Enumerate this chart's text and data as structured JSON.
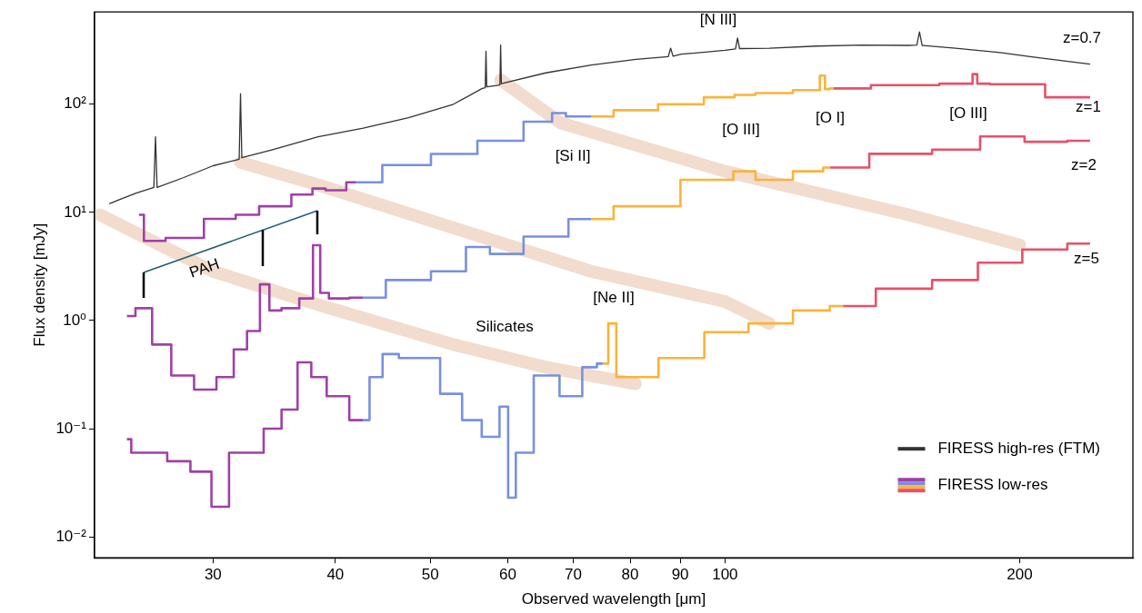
{
  "chart_data": {
    "type": "line",
    "xlabel": "Observed wavelength [μm]",
    "ylabel": "Flux density [mJy]",
    "xlim": [
      22.7,
      261
    ],
    "ylim": [
      0.0064,
      713
    ],
    "xticks": [
      30,
      40,
      50,
      60,
      70,
      80,
      90,
      100,
      200
    ],
    "yticks": [
      {
        "value": 0.01,
        "label": "10⁻²"
      },
      {
        "value": 0.1,
        "label": "10⁻¹"
      },
      {
        "value": 1,
        "label": "10⁰"
      },
      {
        "value": 10,
        "label": "10¹"
      },
      {
        "value": 100,
        "label": "10²"
      }
    ],
    "log": "xy",
    "grid": false,
    "legend": "bottom right",
    "marker": "none",
    "line_style": "solid",
    "series": [
      {
        "color": "#f2dccd",
        "x": [
          59,
          68,
          81,
          100,
          154,
          200
        ],
        "values": [
          168,
          67,
          42,
          24,
          9.5,
          5
        ]
      },
      {
        "color": "#f2dccd",
        "x": [
          32,
          38.4,
          52.8,
          73,
          100,
          111
        ],
        "values": [
          29,
          18,
          7.2,
          2.85,
          1.5,
          0.94
        ]
      },
      {
        "color": "#f2dccd",
        "x": [
          23,
          25,
          30,
          38.4,
          52.8,
          65.6,
          81
        ],
        "values": [
          9.5,
          6.5,
          2.85,
          1.4,
          0.6,
          0.37,
          0.26
        ]
      },
      {
        "name": "FIRESS high-res (FTM)",
        "color": "#333333",
        "x": [
          23.5,
          24,
          25,
          26.1,
          26.2,
          26.3,
          28,
          30,
          31.9,
          32,
          32.1,
          34.5,
          38.4,
          42.7,
          47.5,
          52.8,
          56.5,
          56.9,
          57,
          57.1,
          58.7,
          58.9,
          59,
          59.1,
          65.6,
          73,
          81.1,
          87.5,
          88,
          88.5,
          90.2,
          100,
          102.5,
          103,
          103.5,
          111,
          124,
          138,
          154,
          157,
          158,
          159,
          172,
          191,
          205,
          212,
          236
        ],
        "values": [
          12,
          13,
          15,
          17,
          50,
          17,
          21,
          27,
          31,
          125,
          32,
          38,
          50,
          60,
          75,
          100,
          140,
          142,
          310,
          145,
          150,
          152,
          353,
          155,
          195,
          230,
          260,
          275,
          330,
          278,
          290,
          315,
          325,
          410,
          327,
          330,
          345,
          353,
          350,
          352,
          466,
          350,
          330,
          300,
          275,
          265,
          235
        ]
      },
      {
        "name": "FIRESS low-res",
        "type": "step",
        "color": "#a040a8",
        "x": [
          25.2,
          25.8,
          27.9,
          30.9,
          32.4,
          34.5,
          37.7,
          38.1,
          40.1,
          42
        ],
        "values": [
          9.5,
          5.45,
          5.8,
          8.7,
          9.5,
          11.4,
          14.6,
          16.6,
          16,
          19
        ]
      },
      {
        "type": "step",
        "color": "#7890e0",
        "x": [
          42,
          47.5,
          52.8,
          59.1,
          65.6,
          67.6,
          70,
          73
        ],
        "values": [
          19,
          27.4,
          34.7,
          46,
          69,
          83,
          77,
          77
        ]
      },
      {
        "type": "step",
        "color": "#fbb33a",
        "x": [
          73,
          81.1,
          90,
          100.6,
          104,
          111,
          124,
          126,
          127,
          129
        ],
        "values": [
          77,
          88,
          100,
          116,
          122,
          127,
          135,
          184,
          138,
          140
        ]
      },
      {
        "type": "step",
        "color": "#e8506a",
        "x": [
          129,
          154,
          178,
          180,
          182,
          191,
          236
        ],
        "values": [
          140,
          150,
          155,
          190,
          155,
          153,
          116
        ]
      },
      {
        "type": "step",
        "color": "#a040a8",
        "x": [
          24.5,
          25.5,
          26.5,
          27.9,
          29.5,
          31,
          32,
          33,
          34,
          34.5,
          36,
          37.5,
          38.4,
          38.8,
          40,
          42.7
        ],
        "values": [
          1.1,
          1.3,
          0.6,
          0.31,
          0.23,
          0.3,
          0.54,
          0.8,
          2.16,
          1.24,
          1.3,
          1.6,
          4.97,
          1.8,
          1.6,
          1.63
        ]
      },
      {
        "type": "step",
        "color": "#7890e0",
        "x": [
          42.7,
          47.5,
          52.8,
          56,
          59.1,
          65.6,
          73
        ],
        "values": [
          1.63,
          2.37,
          2.85,
          4.79,
          4.13,
          5.98,
          8.67
        ]
      },
      {
        "type": "step",
        "color": "#fbb33a",
        "x": [
          73,
          81.1,
          100,
          104,
          111,
          124,
          128
        ],
        "values": [
          8.67,
          11.4,
          20,
          24,
          20,
          24,
          26
        ]
      },
      {
        "type": "step",
        "color": "#e8506a",
        "x": [
          128,
          154,
          172,
          193,
          212,
          236
        ],
        "values": [
          26,
          34.8,
          38.1,
          50.4,
          45,
          45.9
        ]
      },
      {
        "type": "step",
        "color": "#a040a8",
        "x": [
          24.5,
          25,
          26,
          27.9,
          29,
          30.8,
          31.5,
          33.1,
          34.5,
          36,
          37.2,
          38.4,
          40,
          42.7
        ],
        "values": [
          0.08,
          0.06,
          0.06,
          0.05,
          0.04,
          0.019,
          0.06,
          0.06,
          0.1,
          0.15,
          0.41,
          0.3,
          0.2,
          0.12
        ]
      },
      {
        "type": "step",
        "color": "#7890e0",
        "x": [
          42.7,
          44,
          45.4,
          47.5,
          49.6,
          52.8,
          55,
          57.9,
          59.8,
          60.3,
          62,
          65.6,
          70,
          73,
          75
        ],
        "values": [
          0.12,
          0.3,
          0.49,
          0.45,
          0.45,
          0.21,
          0.12,
          0.084,
          0.16,
          0.023,
          0.06,
          0.31,
          0.2,
          0.37,
          0.4
        ]
      },
      {
        "type": "step",
        "color": "#fbb33a",
        "x": [
          75,
          77,
          77.9,
          81.1,
          90.2,
          100.6,
          111,
          124,
          132
        ],
        "values": [
          0.4,
          0.94,
          0.3,
          0.3,
          0.45,
          0.78,
          0.94,
          1.24,
          1.36
        ]
      },
      {
        "type": "step",
        "color": "#e8506a",
        "x": [
          132,
          154,
          172,
          191,
          212,
          236
        ],
        "values": [
          1.36,
          1.97,
          2.37,
          3.43,
          4.53,
          5.15
        ]
      }
    ],
    "annotations": [
      "[N III]",
      "z=0.7",
      "z=1",
      "[O III]",
      "[O I]",
      "[O III]",
      "[Si II]",
      "z=2",
      "PAH",
      "[Ne II]",
      "Silicates",
      "z=5"
    ]
  }
}
